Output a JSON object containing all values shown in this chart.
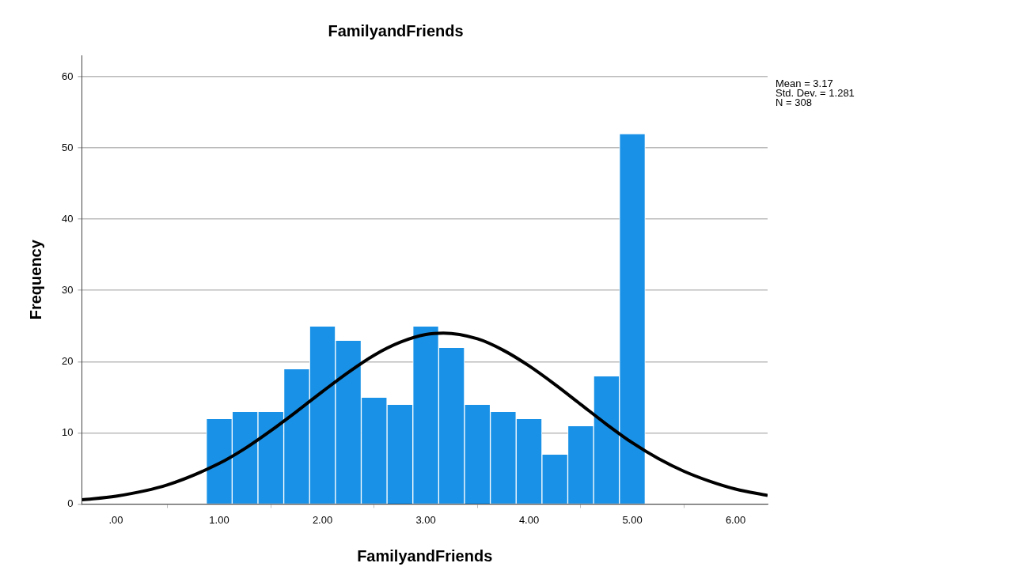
{
  "chart_data": {
    "type": "histogram",
    "title": "FamilyandFriends",
    "xlabel": "FamilyandFriends",
    "ylabel": "Frequency",
    "bins": [
      0.875,
      1.125,
      1.375,
      1.625,
      1.875,
      2.125,
      2.375,
      2.625,
      2.875,
      3.125,
      3.375,
      3.625,
      3.875,
      4.125,
      4.375,
      4.625,
      4.875,
      5.125
    ],
    "series": [
      {
        "type": "histogram",
        "color": "#1991e6",
        "values": [
          12,
          13,
          13,
          19,
          25,
          23,
          15,
          14,
          25,
          22,
          14,
          13,
          12,
          7,
          11,
          18,
          52
        ]
      },
      {
        "type": "line",
        "color": "#000000",
        "x": [
          -0.33,
          0,
          0.5,
          1,
          1.25,
          1.5,
          1.75,
          2,
          2.25,
          2.5,
          2.75,
          3,
          3.17,
          3.5,
          3.75,
          4,
          4.25,
          4.5,
          4.75,
          5,
          5.25,
          5.5,
          5.75,
          6,
          6.31
        ],
        "values": [
          0.6,
          1.1,
          2.7,
          5.7,
          7.8,
          10.3,
          13,
          15.8,
          18.5,
          20.9,
          22.7,
          23.8,
          24,
          23.2,
          21.6,
          19.4,
          16.8,
          14,
          11.2,
          8.6,
          6.4,
          4.6,
          3.2,
          2.1,
          1.2
        ]
      }
    ],
    "xlim": [
      -0.33,
      6.31
    ],
    "xticks": [
      {
        "value": 0,
        "label": ".00"
      },
      {
        "value": 1,
        "label": "1.00"
      },
      {
        "value": 2,
        "label": "2.00"
      },
      {
        "value": 3,
        "label": "3.00"
      },
      {
        "value": 4,
        "label": "4.00"
      },
      {
        "value": 5,
        "label": "5.00"
      },
      {
        "value": 6,
        "label": "6.00"
      }
    ],
    "ylim": [
      0,
      63
    ],
    "yticks": [
      0,
      10,
      20,
      30,
      40,
      50,
      60
    ],
    "grid": "y",
    "legend": false,
    "marker": "none",
    "annotations": [
      "Mean = 3.17",
      "Std. Dev. = 1.281",
      "N = 308"
    ]
  }
}
